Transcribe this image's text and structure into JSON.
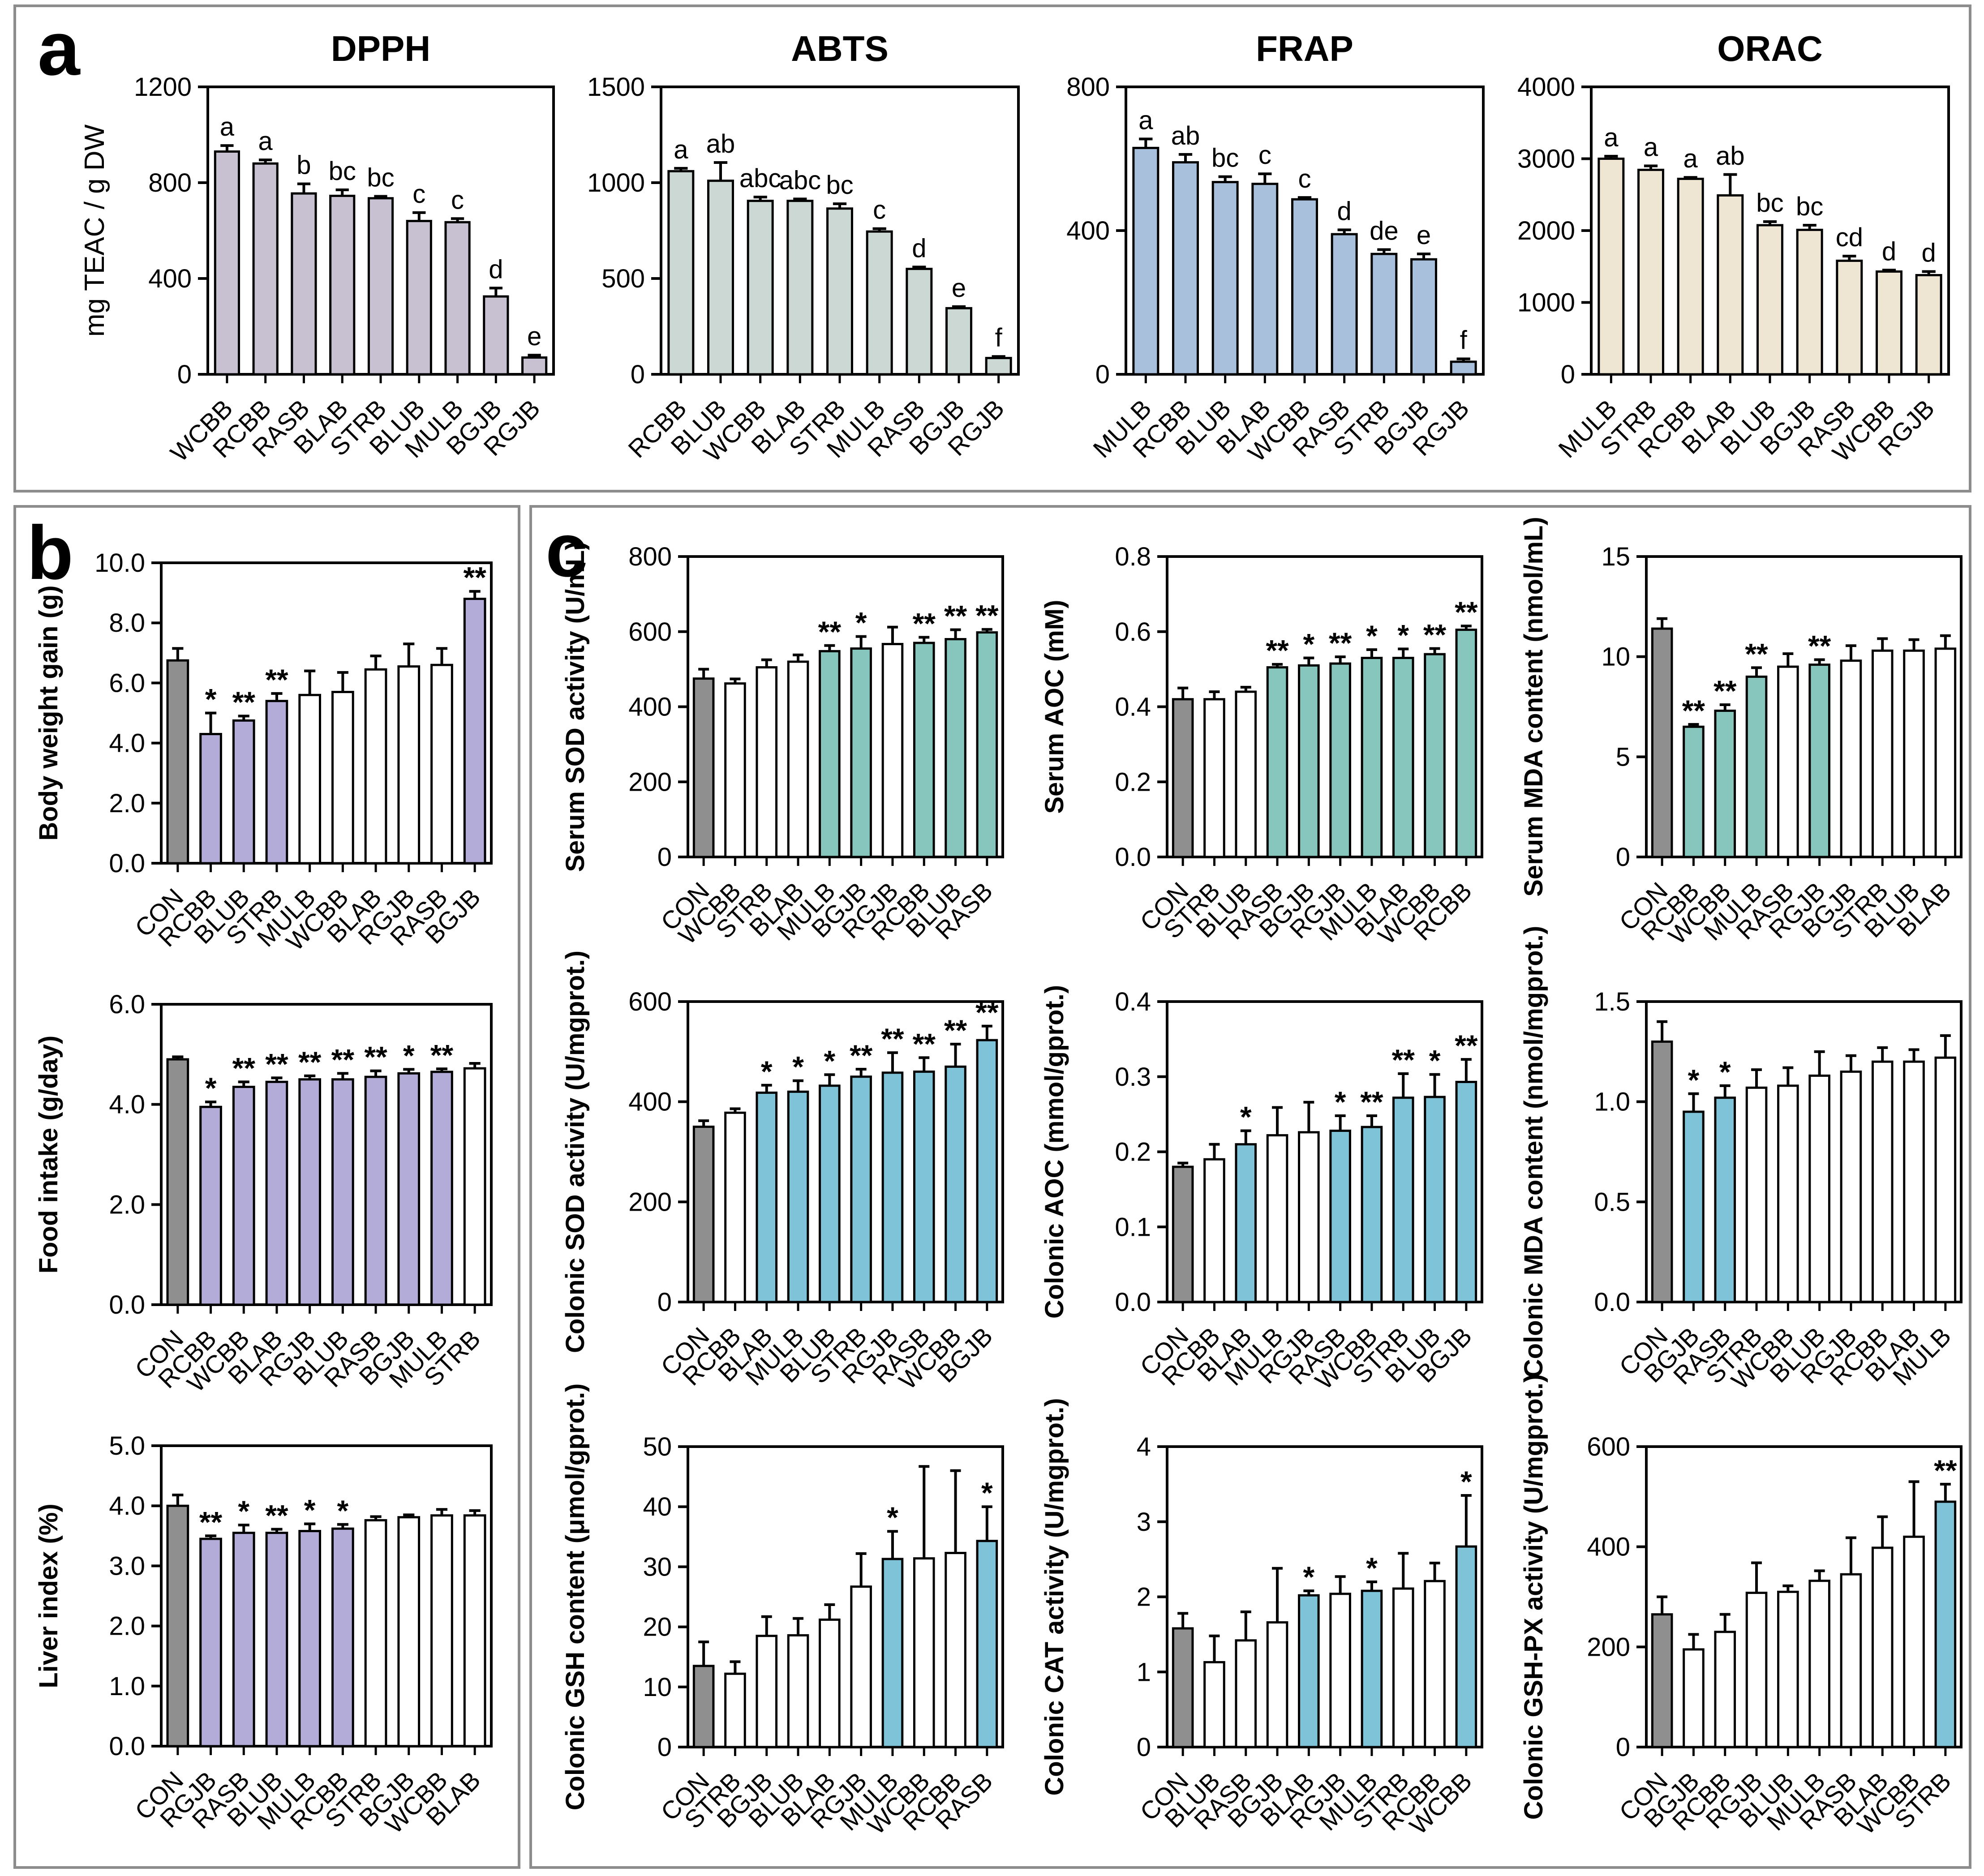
{
  "panels": {
    "a": {
      "label": "a"
    },
    "b": {
      "label": "b"
    },
    "c": {
      "label": "c"
    }
  },
  "palette": {
    "control_gray": "#8f8f8f",
    "panel_a_dpph": "#c7c1d2",
    "panel_a_abts": "#ccd8d3",
    "panel_a_frap": "#a9c0dd",
    "panel_a_orac": "#eee6d2",
    "panel_b_highlight": "#b3abd8",
    "panel_c_serum_highlight": "#87c6bd",
    "panel_c_colonic_highlight": "#7fc3d8",
    "plain_bar": "#ffffff"
  },
  "chart_data": [
    {
      "type": "bar",
      "panel": "a",
      "title": "DPPH",
      "ylabel": "mg TEAC / g DW",
      "ylabel_bold": false,
      "ylim": [
        0,
        1200
      ],
      "yticks": [
        "0",
        "400",
        "800",
        "1200"
      ],
      "categories": [
        "WCBB",
        "RCBB",
        "RASB",
        "BLAB",
        "STRB",
        "BLUB",
        "MULB",
        "BGJB",
        "RGJB"
      ],
      "values": [
        930,
        880,
        755,
        745,
        735,
        640,
        635,
        325,
        70
      ],
      "errors": [
        25,
        15,
        40,
        25,
        8,
        35,
        15,
        35,
        10
      ],
      "sig": [
        "a",
        "a",
        "b",
        "bc",
        "bc",
        "c",
        "c",
        "d",
        "e"
      ],
      "bar_color": "#c7c1d2",
      "colors": null
    },
    {
      "type": "bar",
      "panel": "a",
      "title": "ABTS",
      "ylabel": "",
      "ylabel_bold": false,
      "ylim": [
        0,
        1500
      ],
      "yticks": [
        "0",
        "500",
        "1000",
        "1500"
      ],
      "categories": [
        "RCBB",
        "BLUB",
        "WCBB",
        "BLAB",
        "STRB",
        "MULB",
        "RASB",
        "BGJB",
        "RGJB"
      ],
      "values": [
        1060,
        1010,
        905,
        905,
        865,
        745,
        550,
        345,
        85
      ],
      "errors": [
        15,
        95,
        20,
        10,
        25,
        15,
        10,
        8,
        8
      ],
      "sig": [
        "a",
        "ab",
        "abc",
        "abc",
        "bc",
        "c",
        "d",
        "e",
        "f"
      ],
      "bar_color": "#ccd8d3",
      "colors": null
    },
    {
      "type": "bar",
      "panel": "a",
      "title": "FRAP",
      "ylabel": "",
      "ylabel_bold": false,
      "ylim": [
        0,
        800
      ],
      "yticks": [
        "0",
        "400",
        "800"
      ],
      "categories": [
        "MULB",
        "RCBB",
        "BLUB",
        "BLAB",
        "WCBB",
        "RASB",
        "STRB",
        "BGJB",
        "RGJB"
      ],
      "values": [
        630,
        590,
        535,
        530,
        487,
        390,
        335,
        320,
        35
      ],
      "errors": [
        25,
        22,
        15,
        28,
        5,
        12,
        12,
        15,
        8
      ],
      "sig": [
        "a",
        "ab",
        "bc",
        "c",
        "c",
        "d",
        "de",
        "e",
        "f"
      ],
      "bar_color": "#a9c0dd",
      "colors": null
    },
    {
      "type": "bar",
      "panel": "a",
      "title": "ORAC",
      "ylabel": "",
      "ylabel_bold": false,
      "ylim": [
        0,
        4000
      ],
      "yticks": [
        "0",
        "1000",
        "2000",
        "3000",
        "4000"
      ],
      "categories": [
        "MULB",
        "STRB",
        "RCBB",
        "BLAB",
        "BLUB",
        "BGJB",
        "RASB",
        "WCBB",
        "RGJB"
      ],
      "values": [
        3000,
        2845,
        2720,
        2490,
        2075,
        2010,
        1580,
        1430,
        1380
      ],
      "errors": [
        35,
        55,
        20,
        290,
        50,
        65,
        65,
        20,
        50
      ],
      "sig": [
        "a",
        "a",
        "a",
        "ab",
        "bc",
        "bc",
        "cd",
        "d",
        "d"
      ],
      "bar_color": "#eee6d2",
      "colors": null
    },
    {
      "type": "bar",
      "panel": "b",
      "title": "",
      "ylabel": "Body weight gain (g)",
      "ylabel_bold": true,
      "ylim": [
        0,
        10
      ],
      "yticks": [
        "0.0",
        "2.0",
        "4.0",
        "6.0",
        "8.0",
        "10.0"
      ],
      "categories": [
        "CON",
        "RCBB",
        "BLUB",
        "STRB",
        "MULB",
        "WCBB",
        "BLAB",
        "RGJB",
        "RASB",
        "BGJB"
      ],
      "values": [
        6.75,
        4.3,
        4.75,
        5.4,
        5.6,
        5.7,
        6.45,
        6.55,
        6.6,
        8.8
      ],
      "errors": [
        0.4,
        0.7,
        0.15,
        0.25,
        0.8,
        0.65,
        0.45,
        0.75,
        0.55,
        0.25
      ],
      "sig": [
        "",
        "*",
        "**",
        "**",
        "",
        "",
        "",
        "",
        "",
        "**"
      ],
      "bar_color": "#ffffff",
      "colors": [
        "#8f8f8f",
        "#b3abd8",
        "#b3abd8",
        "#b3abd8",
        "#ffffff",
        "#ffffff",
        "#ffffff",
        "#ffffff",
        "#ffffff",
        "#b3abd8"
      ]
    },
    {
      "type": "bar",
      "panel": "b",
      "title": "",
      "ylabel": "Food intake (g/day)",
      "ylabel_bold": true,
      "ylim": [
        0,
        6
      ],
      "yticks": [
        "0.0",
        "2.0",
        "4.0",
        "6.0"
      ],
      "categories": [
        "CON",
        "RCBB",
        "WCBB",
        "BLAB",
        "RGJB",
        "BLUB",
        "RASB",
        "BGJB",
        "MULB",
        "STRB"
      ],
      "values": [
        4.9,
        3.95,
        4.35,
        4.45,
        4.5,
        4.5,
        4.55,
        4.62,
        4.65,
        4.72
      ],
      "errors": [
        0.05,
        0.1,
        0.1,
        0.08,
        0.07,
        0.12,
        0.12,
        0.08,
        0.06,
        0.1
      ],
      "sig": [
        "",
        "*",
        "**",
        "**",
        "**",
        "**",
        "**",
        "*",
        "**",
        ""
      ],
      "bar_color": "#ffffff",
      "colors": [
        "#8f8f8f",
        "#b3abd8",
        "#b3abd8",
        "#b3abd8",
        "#b3abd8",
        "#b3abd8",
        "#b3abd8",
        "#b3abd8",
        "#b3abd8",
        "#ffffff"
      ]
    },
    {
      "type": "bar",
      "panel": "b",
      "title": "",
      "ylabel": "Liver index (%)",
      "ylabel_bold": true,
      "ylim": [
        0,
        5
      ],
      "yticks": [
        "0.0",
        "1.0",
        "2.0",
        "3.0",
        "4.0",
        "5.0"
      ],
      "categories": [
        "CON",
        "RGJB",
        "RASB",
        "BLUB",
        "MULB",
        "RCBB",
        "STRB",
        "BGJB",
        "WCBB",
        "BLAB"
      ],
      "values": [
        4.0,
        3.45,
        3.55,
        3.55,
        3.58,
        3.62,
        3.76,
        3.81,
        3.84,
        3.84
      ],
      "errors": [
        0.18,
        0.05,
        0.13,
        0.06,
        0.12,
        0.07,
        0.06,
        0.04,
        0.1,
        0.08
      ],
      "sig": [
        "",
        "**",
        "*",
        "**",
        "*",
        "*",
        "",
        "",
        "",
        ""
      ],
      "bar_color": "#ffffff",
      "colors": [
        "#8f8f8f",
        "#b3abd8",
        "#b3abd8",
        "#b3abd8",
        "#b3abd8",
        "#b3abd8",
        "#ffffff",
        "#ffffff",
        "#ffffff",
        "#ffffff"
      ]
    },
    {
      "type": "bar",
      "panel": "c",
      "title": "",
      "ylabel": "Serum SOD activity (U/mL)",
      "ylabel_bold": true,
      "ylim": [
        0,
        800
      ],
      "yticks": [
        "0",
        "200",
        "400",
        "600",
        "800"
      ],
      "categories": [
        "CON",
        "WCBB",
        "STRB",
        "BLAB",
        "MULB",
        "BGJB",
        "RGJB",
        "RCBB",
        "BLUB",
        "RASB"
      ],
      "values": [
        475,
        462,
        505,
        520,
        548,
        555,
        567,
        570,
        580,
        598
      ],
      "errors": [
        25,
        12,
        20,
        18,
        15,
        32,
        45,
        15,
        25,
        8
      ],
      "sig": [
        "",
        "",
        "",
        "",
        "**",
        "*",
        "",
        "**",
        "**",
        "**"
      ],
      "bar_color": "#ffffff",
      "colors": [
        "#8f8f8f",
        "#ffffff",
        "#ffffff",
        "#ffffff",
        "#87c6bd",
        "#87c6bd",
        "#ffffff",
        "#87c6bd",
        "#87c6bd",
        "#87c6bd"
      ]
    },
    {
      "type": "bar",
      "panel": "c",
      "title": "",
      "ylabel": "Serum AOC (mM)",
      "ylabel_bold": true,
      "ylim": [
        0,
        0.8
      ],
      "yticks": [
        "0.0",
        "0.2",
        "0.4",
        "0.6",
        "0.8"
      ],
      "categories": [
        "CON",
        "STRB",
        "BLUB",
        "RASB",
        "BGJB",
        "RGJB",
        "MULB",
        "BLAB",
        "WCBB",
        "RCBB"
      ],
      "values": [
        0.42,
        0.42,
        0.44,
        0.505,
        0.51,
        0.515,
        0.53,
        0.53,
        0.54,
        0.605
      ],
      "errors": [
        0.03,
        0.02,
        0.012,
        0.008,
        0.02,
        0.018,
        0.022,
        0.024,
        0.015,
        0.01
      ],
      "sig": [
        "",
        "",
        "",
        "**",
        "*",
        "**",
        "*",
        "*",
        "**",
        "**"
      ],
      "bar_color": "#ffffff",
      "colors": [
        "#8f8f8f",
        "#ffffff",
        "#ffffff",
        "#87c6bd",
        "#87c6bd",
        "#87c6bd",
        "#87c6bd",
        "#87c6bd",
        "#87c6bd",
        "#87c6bd"
      ]
    },
    {
      "type": "bar",
      "panel": "c",
      "title": "",
      "ylabel": "Serum MDA content (nmol/mL)",
      "ylabel_bold": true,
      "ylim": [
        0,
        15
      ],
      "yticks": [
        "0",
        "5",
        "10",
        "15"
      ],
      "categories": [
        "CON",
        "RCBB",
        "WCBB",
        "MULB",
        "RASB",
        "RGJB",
        "BGJB",
        "STRB",
        "BLUB",
        "BLAB"
      ],
      "values": [
        11.4,
        6.5,
        7.3,
        9.0,
        9.5,
        9.6,
        9.8,
        10.3,
        10.3,
        10.4
      ],
      "errors": [
        0.5,
        0.12,
        0.3,
        0.45,
        0.65,
        0.25,
        0.75,
        0.6,
        0.55,
        0.65
      ],
      "sig": [
        "",
        "**",
        "**",
        "**",
        "",
        "**",
        "",
        "",
        "",
        ""
      ],
      "bar_color": "#ffffff",
      "colors": [
        "#8f8f8f",
        "#87c6bd",
        "#87c6bd",
        "#87c6bd",
        "#ffffff",
        "#87c6bd",
        "#ffffff",
        "#ffffff",
        "#ffffff",
        "#ffffff"
      ]
    },
    {
      "type": "bar",
      "panel": "c",
      "title": "",
      "ylabel": "Colonic SOD activity (U/mgprot.)",
      "ylabel_bold": true,
      "ylim": [
        0,
        600
      ],
      "yticks": [
        "0",
        "200",
        "400",
        "600"
      ],
      "categories": [
        "CON",
        "RCBB",
        "BLAB",
        "MULB",
        "BLUB",
        "STRB",
        "RGJB",
        "RASB",
        "WCBB",
        "BGJB"
      ],
      "values": [
        350,
        378,
        418,
        420,
        432,
        450,
        458,
        460,
        470,
        523
      ],
      "errors": [
        12,
        8,
        15,
        22,
        22,
        15,
        40,
        28,
        45,
        28
      ],
      "sig": [
        "",
        "",
        "*",
        "*",
        "*",
        "**",
        "**",
        "**",
        "**",
        "**"
      ],
      "bar_color": "#ffffff",
      "colors": [
        "#8f8f8f",
        "#ffffff",
        "#7fc3d8",
        "#7fc3d8",
        "#7fc3d8",
        "#7fc3d8",
        "#7fc3d8",
        "#7fc3d8",
        "#7fc3d8",
        "#7fc3d8"
      ]
    },
    {
      "type": "bar",
      "panel": "c",
      "title": "",
      "ylabel": "Colonic AOC (mmol/gprot.)",
      "ylabel_bold": true,
      "ylim": [
        0,
        0.4
      ],
      "yticks": [
        "0.0",
        "0.1",
        "0.2",
        "0.3",
        "0.4"
      ],
      "categories": [
        "CON",
        "RCBB",
        "BLAB",
        "MULB",
        "RGJB",
        "RASB",
        "WCBB",
        "STRB",
        "BLUB",
        "BGJB"
      ],
      "values": [
        0.18,
        0.19,
        0.21,
        0.222,
        0.226,
        0.228,
        0.233,
        0.272,
        0.273,
        0.293
      ],
      "errors": [
        0.005,
        0.02,
        0.018,
        0.037,
        0.04,
        0.02,
        0.015,
        0.032,
        0.03,
        0.03
      ],
      "sig": [
        "",
        "",
        "*",
        "",
        "",
        "*",
        "**",
        "**",
        "*",
        "**"
      ],
      "bar_color": "#ffffff",
      "colors": [
        "#8f8f8f",
        "#ffffff",
        "#7fc3d8",
        "#ffffff",
        "#ffffff",
        "#7fc3d8",
        "#7fc3d8",
        "#7fc3d8",
        "#7fc3d8",
        "#7fc3d8"
      ]
    },
    {
      "type": "bar",
      "panel": "c",
      "title": "",
      "ylabel": "Colonic MDA content (nmol/mgprot.)",
      "ylabel_bold": true,
      "ylim": [
        0,
        1.5
      ],
      "yticks": [
        "0.0",
        "0.5",
        "1.0",
        "1.5"
      ],
      "categories": [
        "CON",
        "BGJB",
        "RASB",
        "STRB",
        "WCBB",
        "BLUB",
        "RGJB",
        "RCBB",
        "BLAB",
        "MULB"
      ],
      "values": [
        1.3,
        0.95,
        1.02,
        1.07,
        1.08,
        1.13,
        1.15,
        1.2,
        1.2,
        1.22
      ],
      "errors": [
        0.1,
        0.09,
        0.06,
        0.09,
        0.09,
        0.12,
        0.08,
        0.07,
        0.06,
        0.11
      ],
      "sig": [
        "",
        "*",
        "*",
        "",
        "",
        "",
        "",
        "",
        "",
        ""
      ],
      "bar_color": "#ffffff",
      "colors": [
        "#8f8f8f",
        "#7fc3d8",
        "#7fc3d8",
        "#ffffff",
        "#ffffff",
        "#ffffff",
        "#ffffff",
        "#ffffff",
        "#ffffff",
        "#ffffff"
      ]
    },
    {
      "type": "bar",
      "panel": "c",
      "title": "",
      "ylabel": "Colonic GSH content (μmol/gprot.)",
      "ylabel_bold": true,
      "ylim": [
        0,
        50
      ],
      "yticks": [
        "0",
        "10",
        "20",
        "30",
        "40",
        "50"
      ],
      "categories": [
        "CON",
        "STRB",
        "BGJB",
        "BLUB",
        "BLAB",
        "RGJB",
        "MULB",
        "WCBB",
        "RCBB",
        "RASB"
      ],
      "values": [
        13.5,
        12.2,
        18.5,
        18.6,
        21.2,
        26.7,
        31.3,
        31.4,
        32.3,
        34.3
      ],
      "errors": [
        4.0,
        2.0,
        3.2,
        2.8,
        2.5,
        5.5,
        4.6,
        15.3,
        13.7,
        5.7
      ],
      "sig": [
        "",
        "",
        "",
        "",
        "",
        "",
        "*",
        "",
        "",
        "*"
      ],
      "bar_color": "#ffffff",
      "colors": [
        "#8f8f8f",
        "#ffffff",
        "#ffffff",
        "#ffffff",
        "#ffffff",
        "#ffffff",
        "#7fc3d8",
        "#ffffff",
        "#ffffff",
        "#7fc3d8"
      ]
    },
    {
      "type": "bar",
      "panel": "c",
      "title": "",
      "ylabel": "Colonic CAT activity (U/mgprot.)",
      "ylabel_bold": true,
      "ylim": [
        0,
        4
      ],
      "yticks": [
        "0",
        "1",
        "2",
        "3",
        "4"
      ],
      "categories": [
        "CON",
        "BLUB",
        "RASB",
        "BGJB",
        "BLAB",
        "RGJB",
        "MULB",
        "STRB",
        "RCBB",
        "WCBB"
      ],
      "values": [
        1.58,
        1.13,
        1.42,
        1.66,
        2.02,
        2.04,
        2.08,
        2.11,
        2.21,
        2.67
      ],
      "errors": [
        0.2,
        0.35,
        0.38,
        0.72,
        0.06,
        0.23,
        0.12,
        0.47,
        0.24,
        0.68
      ],
      "sig": [
        "",
        "",
        "",
        "",
        "*",
        "",
        "*",
        "",
        "",
        "*"
      ],
      "bar_color": "#ffffff",
      "colors": [
        "#8f8f8f",
        "#ffffff",
        "#ffffff",
        "#ffffff",
        "#7fc3d8",
        "#ffffff",
        "#7fc3d8",
        "#ffffff",
        "#ffffff",
        "#7fc3d8"
      ]
    },
    {
      "type": "bar",
      "panel": "c",
      "title": "",
      "ylabel": "Colonic GSH-PX activity (U/mgprot.)",
      "ylabel_bold": true,
      "ylim": [
        0,
        600
      ],
      "yticks": [
        "0",
        "200",
        "400",
        "600"
      ],
      "categories": [
        "CON",
        "BGJB",
        "RCBB",
        "RGJB",
        "BLUB",
        "MULB",
        "RASB",
        "BLAB",
        "WCBB",
        "STRB"
      ],
      "values": [
        265,
        195,
        230,
        308,
        310,
        332,
        345,
        398,
        420,
        490
      ],
      "errors": [
        35,
        30,
        35,
        60,
        12,
        20,
        73,
        62,
        110,
        35
      ],
      "sig": [
        "",
        "",
        "",
        "",
        "",
        "",
        "",
        "",
        "",
        "**"
      ],
      "bar_color": "#ffffff",
      "colors": [
        "#8f8f8f",
        "#ffffff",
        "#ffffff",
        "#ffffff",
        "#ffffff",
        "#ffffff",
        "#ffffff",
        "#ffffff",
        "#ffffff",
        "#7fc3d8"
      ]
    }
  ]
}
